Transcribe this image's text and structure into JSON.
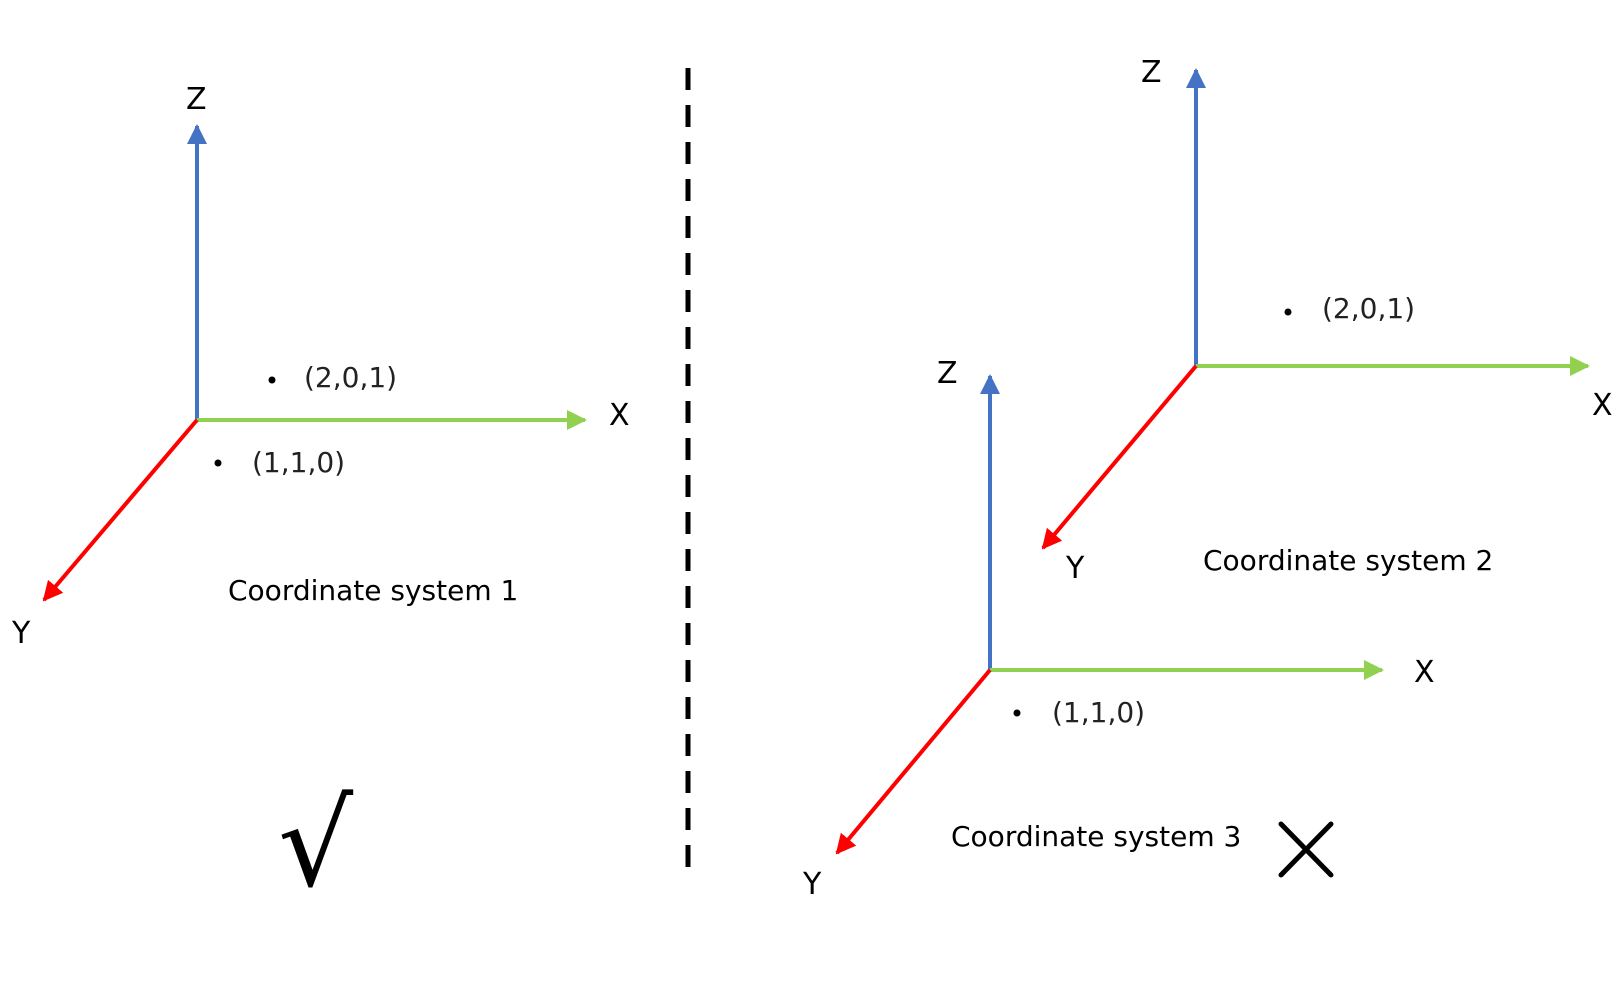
{
  "colors": {
    "x_axis": "#92d050",
    "y_axis": "#ff0000",
    "z_axis": "#4472c4",
    "divider": "#000000",
    "text": "#000000"
  },
  "systems": [
    {
      "id": "system-1",
      "caption": "Coordinate system 1",
      "axis_labels": {
        "x": "X",
        "y": "Y",
        "z": "Z"
      },
      "points": [
        {
          "label": "(2,0,1)"
        },
        {
          "label": "(1,1,0)"
        }
      ],
      "verdict": "correct",
      "verdict_symbol": "√"
    },
    {
      "id": "system-2",
      "caption": "Coordinate system 2",
      "axis_labels": {
        "x": "X",
        "y": "Y",
        "z": "Z"
      },
      "points": [
        {
          "label": "(2,0,1)"
        }
      ]
    },
    {
      "id": "system-3",
      "caption": "Coordinate system 3",
      "axis_labels": {
        "x": "X",
        "y": "Y",
        "z": "Z"
      },
      "points": [
        {
          "label": "(1,1,0)"
        }
      ],
      "verdict": "incorrect",
      "verdict_symbol": "cross-icon"
    }
  ]
}
